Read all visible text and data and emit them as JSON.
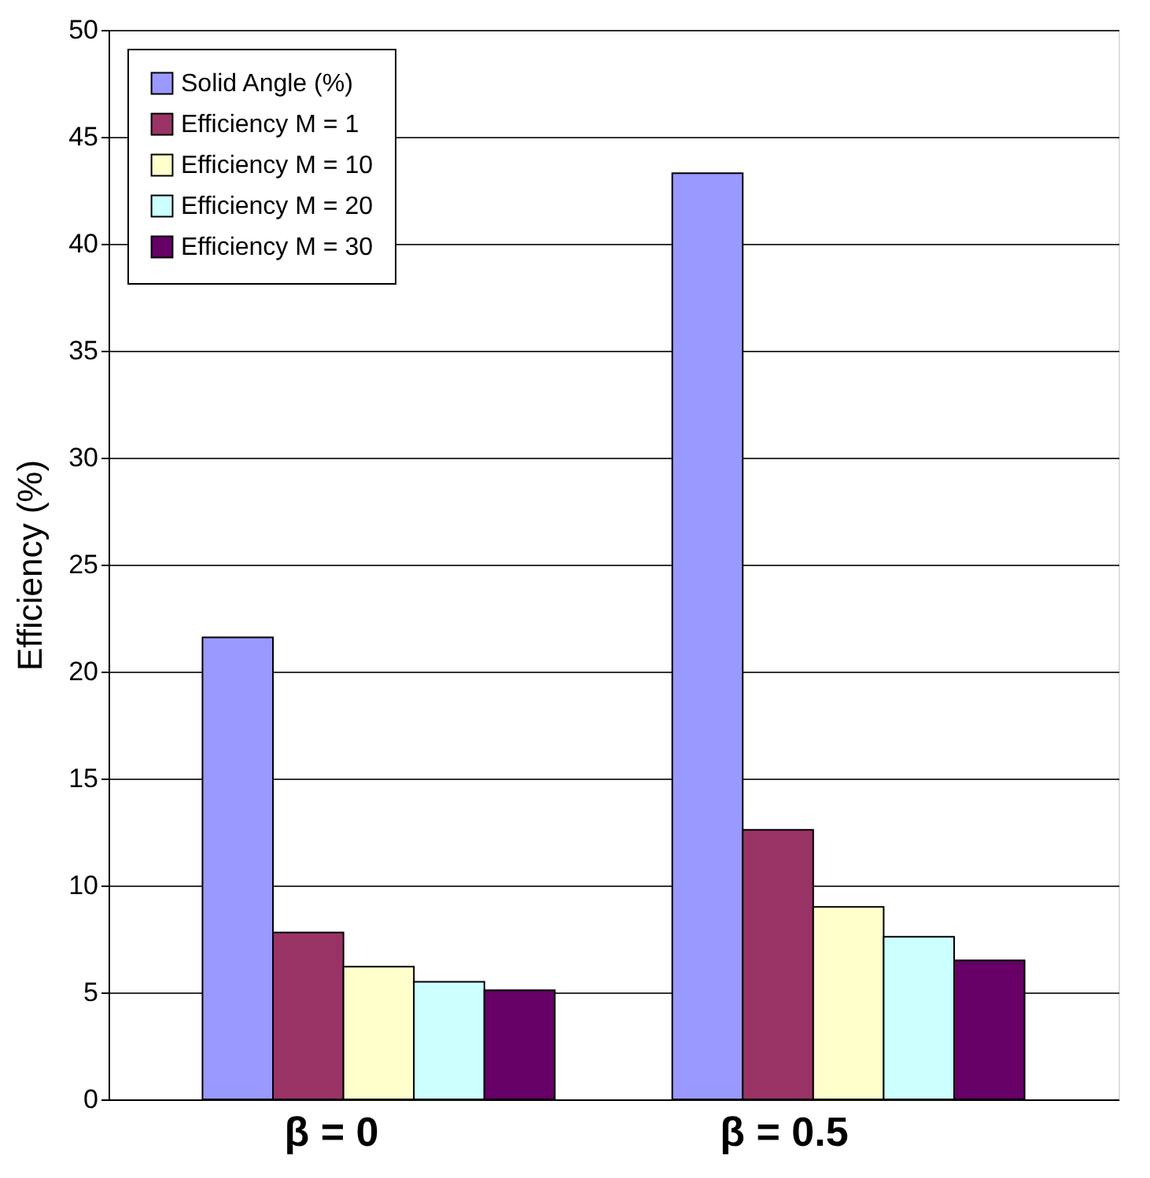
{
  "chart_data": {
    "type": "bar",
    "ylabel": "Efficiency (%)",
    "categories": [
      "β = 0",
      "β = 0.5"
    ],
    "series": [
      {
        "name": "Solid Angle (%)",
        "color": "#9999ff",
        "values": [
          21.6,
          43.3
        ]
      },
      {
        "name": "Efficiency M = 1",
        "color": "#993366",
        "values": [
          7.8,
          12.6
        ]
      },
      {
        "name": "Efficiency M = 10",
        "color": "#ffffcc",
        "values": [
          6.2,
          9.0
        ]
      },
      {
        "name": "Efficiency M = 20",
        "color": "#ccffff",
        "values": [
          5.5,
          7.6
        ]
      },
      {
        "name": "Efficiency M = 30",
        "color": "#660066",
        "values": [
          5.1,
          6.5
        ]
      }
    ],
    "ylim": [
      0,
      50
    ],
    "yticks": [
      0,
      5,
      10,
      15,
      20,
      25,
      30,
      35,
      40,
      45,
      50
    ],
    "grid": "y",
    "legend": "top left"
  }
}
